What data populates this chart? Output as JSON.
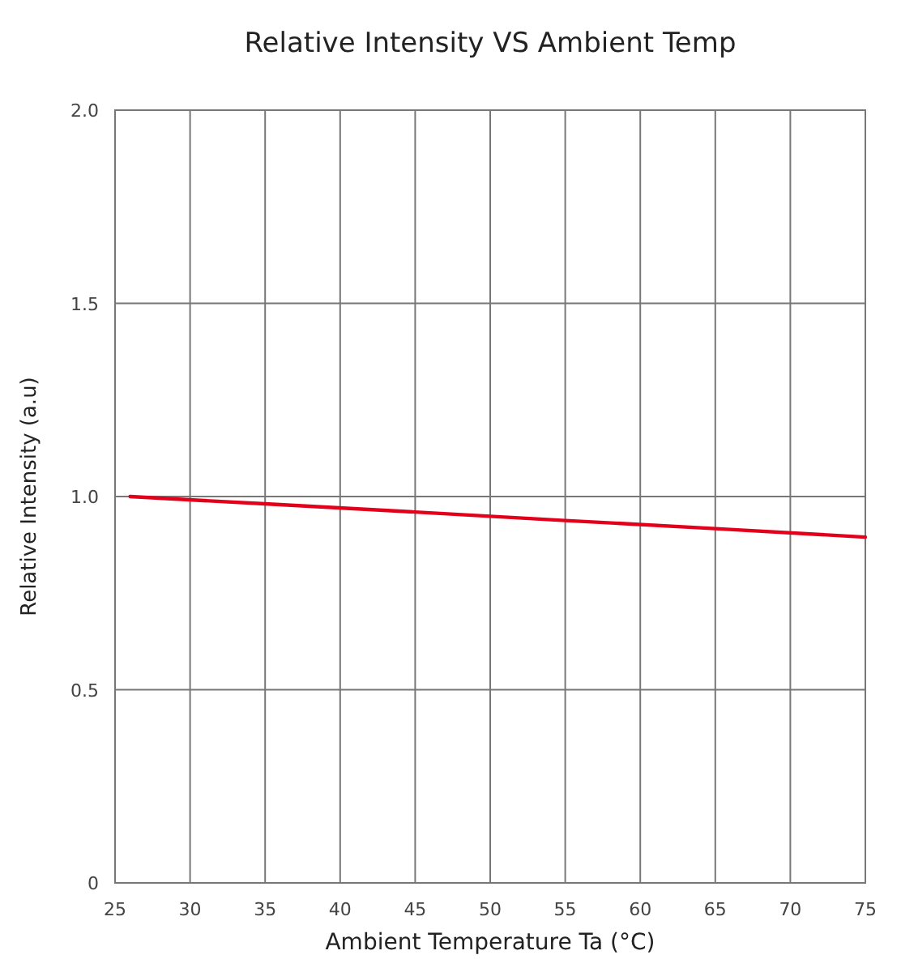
{
  "chart_data": {
    "type": "line",
    "title": "Relative Intensity VS Ambient Temp",
    "xlabel": "Ambient Temperature Ta (°C)",
    "ylabel": "Relative Intensity (a.u)",
    "x": [
      26,
      35,
      45,
      55,
      65,
      75
    ],
    "series": [
      {
        "color": "#e3001b",
        "values": [
          1.0,
          0.981,
          0.96,
          0.938,
          0.917,
          0.895
        ]
      }
    ],
    "xlim": [
      25,
      75
    ],
    "xticks": [
      25,
      30,
      35,
      40,
      45,
      50,
      55,
      60,
      65,
      70,
      75
    ],
    "ylim": [
      0,
      2
    ],
    "yticks": [
      0,
      {
        "value": 0.5,
        "label": "0.5"
      },
      {
        "value": 1,
        "label": "1.0"
      },
      {
        "value": 1.5,
        "label": "1.5"
      },
      {
        "value": 2,
        "label": "2.0"
      }
    ],
    "grid": true,
    "marker": "none",
    "line_style": "solid"
  }
}
